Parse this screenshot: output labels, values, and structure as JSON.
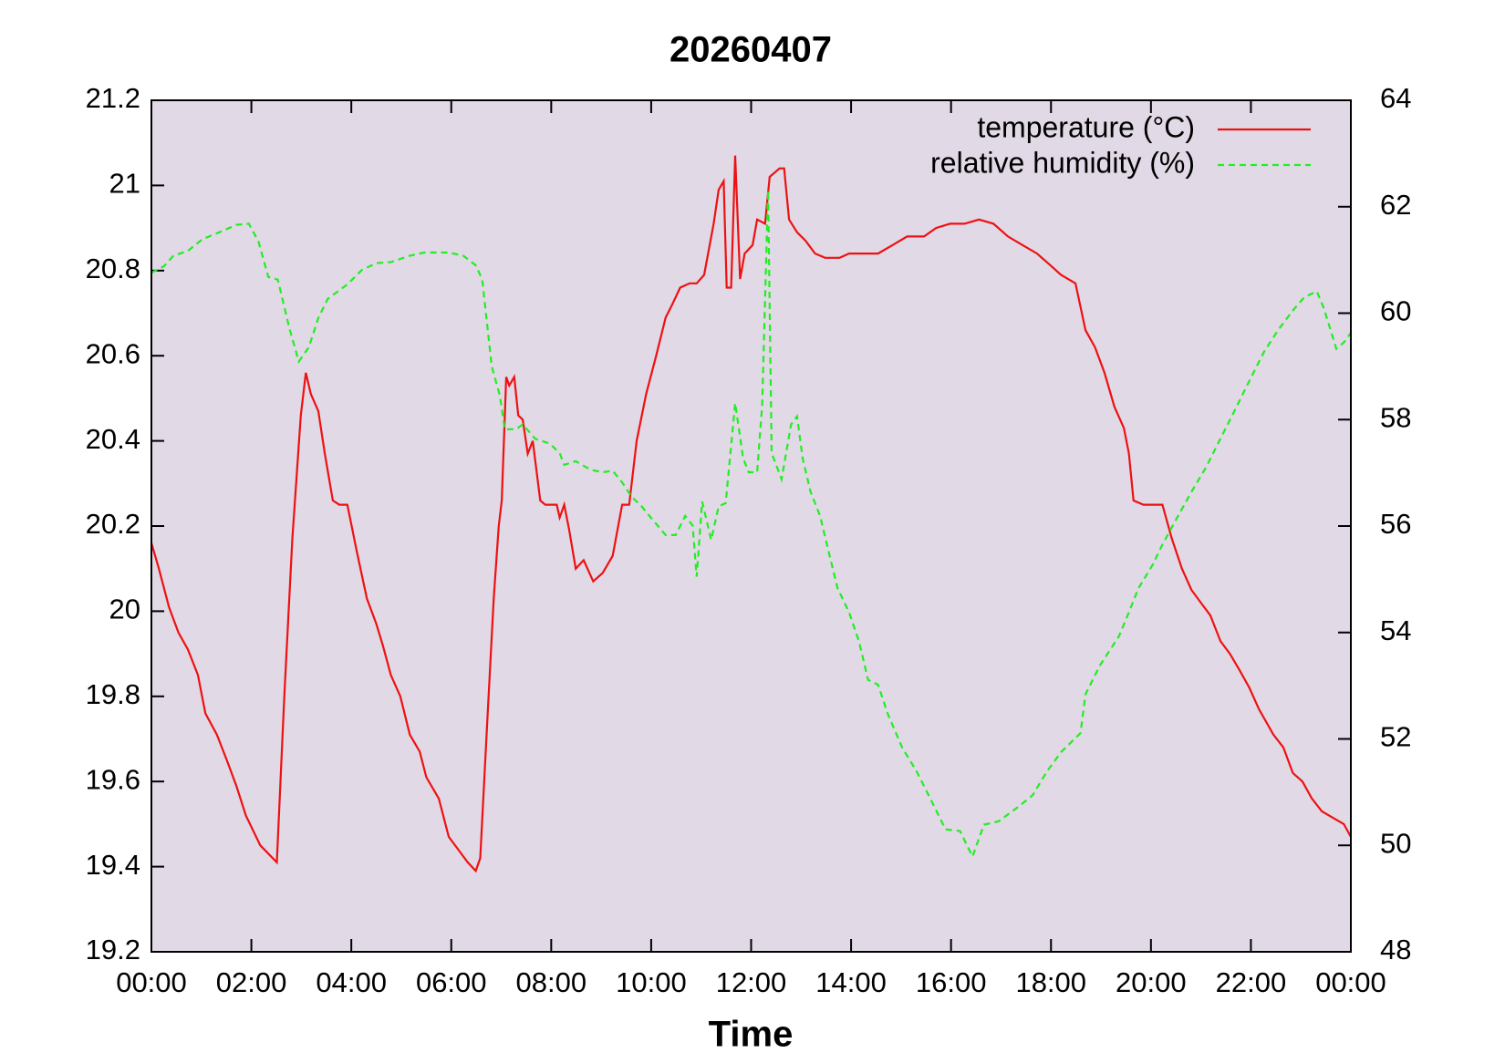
{
  "chart_data": {
    "type": "line",
    "title": "20260407",
    "x_label": "Time",
    "xlim": [
      0,
      24
    ],
    "xticks": [
      {
        "value": 0,
        "label": "00:00"
      },
      {
        "value": 2,
        "label": "02:00"
      },
      {
        "value": 4,
        "label": "04:00"
      },
      {
        "value": 6,
        "label": "06:00"
      },
      {
        "value": 8,
        "label": "08:00"
      },
      {
        "value": 10,
        "label": "10:00"
      },
      {
        "value": 12,
        "label": "12:00"
      },
      {
        "value": 14,
        "label": "14:00"
      },
      {
        "value": 16,
        "label": "16:00"
      },
      {
        "value": 18,
        "label": "18:00"
      },
      {
        "value": 20,
        "label": "20:00"
      },
      {
        "value": 22,
        "label": "22:00"
      },
      {
        "value": 24,
        "label": "00:00"
      }
    ],
    "ylim": [
      19.2,
      21.2
    ],
    "yticks": [
      19.2,
      19.4,
      19.6,
      19.8,
      20,
      20.2,
      20.4,
      20.6,
      20.8,
      21,
      21.2
    ],
    "y2lim": [
      48,
      64
    ],
    "y2ticks": [
      48,
      50,
      52,
      54,
      56,
      58,
      60,
      62,
      64
    ],
    "background": "#e1d9e6",
    "legend": "top-right",
    "series": [
      {
        "name": "temperature (°C)",
        "color": "#ee1111",
        "line_style": "solid",
        "x": [
          0,
          0.15,
          0.35,
          0.54,
          0.73,
          0.93,
          1.08,
          1.31,
          1.51,
          1.7,
          1.89,
          2.18,
          2.51,
          2.66,
          2.82,
          2.99,
          3.09,
          3.19,
          3.34,
          3.47,
          3.63,
          3.76,
          3.92,
          4.11,
          4.31,
          4.5,
          4.63,
          4.79,
          4.98,
          5.17,
          5.37,
          5.5,
          5.75,
          5.95,
          6.14,
          6.33,
          6.49,
          6.58,
          6.72,
          6.85,
          6.95,
          7.01,
          7.1,
          7.16,
          7.26,
          7.34,
          7.43,
          7.53,
          7.63,
          7.78,
          7.88,
          8.11,
          8.17,
          8.26,
          8.36,
          8.49,
          8.65,
          8.84,
          9.03,
          9.23,
          9.42,
          9.56,
          9.71,
          9.9,
          10.1,
          10.29,
          10.42,
          10.58,
          10.77,
          10.91,
          11.06,
          11.25,
          11.35,
          11.45,
          11.51,
          11.6,
          11.68,
          11.78,
          11.87,
          12.03,
          12.12,
          12.28,
          12.37,
          12.57,
          12.66,
          12.76,
          12.92,
          13.09,
          13.28,
          13.48,
          13.77,
          13.96,
          14.34,
          14.54,
          14.83,
          15.12,
          15.46,
          15.7,
          15.98,
          16.27,
          16.56,
          16.85,
          17.14,
          17.43,
          17.72,
          18.01,
          18.2,
          18.49,
          18.69,
          18.88,
          19.07,
          19.27,
          19.46,
          19.56,
          19.65,
          19.85,
          20.23,
          20.42,
          20.62,
          20.81,
          21,
          21.19,
          21.39,
          21.58,
          21.78,
          21.97,
          22.16,
          22.45,
          22.65,
          22.84,
          23.03,
          23.22,
          23.42,
          23.71,
          23.86,
          24
        ],
        "values": [
          20.16,
          20.1,
          20.01,
          19.95,
          19.91,
          19.85,
          19.76,
          19.71,
          19.65,
          19.59,
          19.52,
          19.45,
          19.41,
          19.8,
          20.17,
          20.46,
          20.56,
          20.51,
          20.47,
          20.37,
          20.26,
          20.25,
          20.25,
          20.14,
          20.03,
          19.97,
          19.92,
          19.85,
          19.8,
          19.71,
          19.67,
          19.61,
          19.56,
          19.47,
          19.44,
          19.41,
          19.39,
          19.42,
          19.74,
          20.03,
          20.2,
          20.26,
          20.55,
          20.53,
          20.55,
          20.46,
          20.45,
          20.37,
          20.4,
          20.26,
          20.25,
          20.25,
          20.22,
          20.25,
          20.19,
          20.1,
          20.12,
          20.07,
          20.09,
          20.13,
          20.25,
          20.25,
          20.4,
          20.51,
          20.6,
          20.69,
          20.72,
          20.76,
          20.77,
          20.77,
          20.79,
          20.91,
          20.99,
          21.01,
          20.76,
          20.76,
          21.07,
          20.78,
          20.84,
          20.86,
          20.92,
          20.91,
          21.02,
          21.04,
          21.04,
          20.92,
          20.89,
          20.87,
          20.84,
          20.83,
          20.83,
          20.84,
          20.84,
          20.84,
          20.86,
          20.88,
          20.88,
          20.9,
          20.91,
          20.91,
          20.92,
          20.91,
          20.88,
          20.86,
          20.84,
          20.81,
          20.79,
          20.77,
          20.66,
          20.62,
          20.56,
          20.48,
          20.43,
          20.37,
          20.26,
          20.25,
          20.25,
          20.17,
          20.1,
          20.05,
          20.02,
          19.99,
          19.93,
          19.9,
          19.86,
          19.82,
          19.77,
          19.71,
          19.68,
          19.62,
          19.6,
          19.56,
          19.53,
          19.51,
          19.5,
          19.47
        ]
      },
      {
        "name": "relative humidity (%)",
        "color": "#22ee22",
        "line_style": "dashed",
        "axis": "y2",
        "x": [
          0,
          0.25,
          0.44,
          0.73,
          1.02,
          1.41,
          1.7,
          1.95,
          2.14,
          2.34,
          2.53,
          2.76,
          2.95,
          3.15,
          3.34,
          3.53,
          3.73,
          3.92,
          4.21,
          4.5,
          4.79,
          5.17,
          5.46,
          5.95,
          6.24,
          6.49,
          6.62,
          6.81,
          6.97,
          7.07,
          7.3,
          7.43,
          7.68,
          7.97,
          8.17,
          8.26,
          8.49,
          8.78,
          9.03,
          9.23,
          9.42,
          9.61,
          9.81,
          10,
          10.29,
          10.49,
          10.68,
          10.83,
          10.91,
          11.02,
          11.2,
          11.35,
          11.49,
          11.68,
          11.84,
          11.95,
          12.12,
          12.22,
          12.34,
          12.41,
          12.61,
          12.8,
          12.92,
          13.03,
          13.19,
          13.38,
          13.54,
          13.73,
          13.96,
          14.16,
          14.34,
          14.54,
          14.73,
          15.02,
          15.31,
          15.6,
          15.89,
          16.18,
          16.43,
          16.66,
          16.95,
          17.34,
          17.63,
          17.92,
          18.2,
          18.59,
          18.69,
          18.98,
          19.36,
          19.56,
          19.75,
          20.04,
          20.23,
          20.52,
          20.81,
          21.1,
          21.39,
          21.68,
          21.97,
          22.26,
          22.55,
          22.84,
          23.07,
          23.32,
          23.46,
          23.71,
          23.86,
          24
        ],
        "values": [
          60.76,
          60.88,
          61.08,
          61.17,
          61.39,
          61.54,
          61.66,
          61.68,
          61.35,
          60.68,
          60.63,
          59.72,
          59.09,
          59.36,
          59.91,
          60.27,
          60.41,
          60.54,
          60.81,
          60.94,
          60.96,
          61.08,
          61.14,
          61.14,
          61.08,
          60.9,
          60.63,
          59,
          58.46,
          57.82,
          57.82,
          57.91,
          57.64,
          57.55,
          57.37,
          57.15,
          57.22,
          57.06,
          57.01,
          57.04,
          56.82,
          56.55,
          56.37,
          56.15,
          55.83,
          55.83,
          56.19,
          56.01,
          55.05,
          56.46,
          55.74,
          56.37,
          56.43,
          58.31,
          57.28,
          57.01,
          57.01,
          58.27,
          62.31,
          57.37,
          56.88,
          57.91,
          58.06,
          57.28,
          56.64,
          56.19,
          55.56,
          54.83,
          54.38,
          53.83,
          53.11,
          53.02,
          52.48,
          51.84,
          51.39,
          50.85,
          50.3,
          50.27,
          49.79,
          50.39,
          50.45,
          50.72,
          50.94,
          51.39,
          51.75,
          52.11,
          52.84,
          53.38,
          53.93,
          54.38,
          54.83,
          55.28,
          55.65,
          56.15,
          56.64,
          57.1,
          57.64,
          58.18,
          58.73,
          59.27,
          59.69,
          60.05,
          60.3,
          60.41,
          60.09,
          59.33,
          59.45,
          59.63
        ]
      }
    ]
  }
}
